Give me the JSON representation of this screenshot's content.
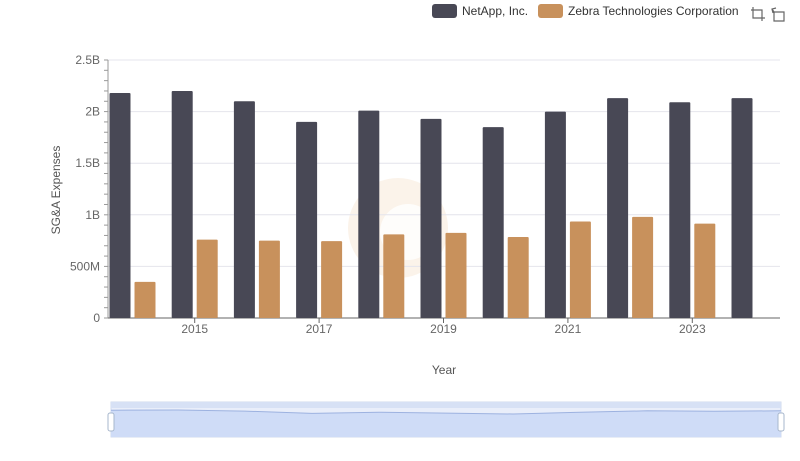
{
  "legend": [
    {
      "name": "NetApp, Inc.",
      "color": "#484855"
    },
    {
      "name": "Zebra Technologies Corporation",
      "color": "#c8915c"
    }
  ],
  "toolbox": {
    "zoom_icon": "zoom-select-icon",
    "restore_icon": "restore-icon"
  },
  "chart_data": {
    "type": "bar",
    "xlabel": "Year",
    "ylabel": "SG&A Expenses",
    "ylim": [
      0,
      2500000000
    ],
    "yticks": [
      0,
      500000000,
      1000000000,
      1500000000,
      2000000000,
      2500000000
    ],
    "ytick_labels": [
      "0",
      "500M",
      "1B",
      "1.5B",
      "2B",
      "2.5B"
    ],
    "categories": [
      "2014",
      "2015",
      "2016",
      "2017",
      "2018",
      "2019",
      "2020",
      "2021",
      "2022",
      "2023",
      "2024"
    ],
    "xtick_labels": [
      "2015",
      "2017",
      "2019",
      "2021",
      "2023"
    ],
    "grid": true,
    "legend_position": "top-right",
    "series": [
      {
        "name": "NetApp, Inc.",
        "color": "#484855",
        "values": [
          2180000000,
          2200000000,
          2100000000,
          1900000000,
          2010000000,
          1930000000,
          1850000000,
          2000000000,
          2130000000,
          2090000000,
          2130000000
        ]
      },
      {
        "name": "Zebra Technologies Corporation",
        "color": "#c8915c",
        "values": [
          350000000,
          760000000,
          750000000,
          745000000,
          810000000,
          825000000,
          785000000,
          935000000,
          980000000,
          915000000,
          null
        ]
      }
    ]
  }
}
